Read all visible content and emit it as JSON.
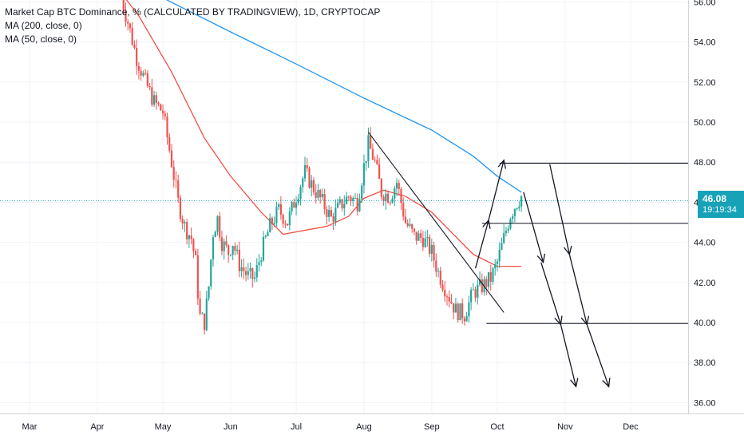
{
  "chart_data": {
    "type": "candlestick",
    "title": "Market Cap BTC Dominance, % (CALCULATED BY TRADINGVIEW), 1D, CRYPTOCAP",
    "indicators": [
      {
        "name": "MA (200, close, 0)",
        "color": "#2196f3"
      },
      {
        "name": "MA (50, close, 0)",
        "color": "#f44336"
      }
    ],
    "x_ticks": [
      "Mar",
      "Apr",
      "May",
      "Jun",
      "Jul",
      "Aug",
      "Sep",
      "Oct",
      "Nov",
      "Dec"
    ],
    "y_ticks": [
      "36.00",
      "38.00",
      "40.00",
      "42.00",
      "44.00",
      "46.00",
      "48.00",
      "50.00",
      "52.00",
      "54.00",
      "56.00"
    ],
    "ylim": [
      35.5,
      56.2
    ],
    "last_price": "46.08",
    "countdown": "19:19:34",
    "price_path": [
      [
        "2021-04-12",
        56.2
      ],
      [
        "2021-04-15",
        55.0
      ],
      [
        "2021-04-19",
        53.2
      ],
      [
        "2021-04-23",
        52.0
      ],
      [
        "2021-04-27",
        51.0
      ],
      [
        "2021-05-01",
        50.5
      ],
      [
        "2021-05-05",
        48.0
      ],
      [
        "2021-05-08",
        46.0
      ],
      [
        "2021-05-11",
        44.8
      ],
      [
        "2021-05-14",
        44.2
      ],
      [
        "2021-05-16",
        43.0
      ],
      [
        "2021-05-17",
        41.5
      ],
      [
        "2021-05-18",
        40.3
      ],
      [
        "2021-05-20",
        40.0
      ],
      [
        "2021-05-22",
        41.8
      ],
      [
        "2021-05-24",
        44.5
      ],
      [
        "2021-05-26",
        45.2
      ],
      [
        "2021-05-28",
        44.0
      ],
      [
        "2021-05-31",
        43.5
      ],
      [
        "2021-06-02",
        44.0
      ],
      [
        "2021-06-05",
        42.9
      ],
      [
        "2021-06-09",
        42.3
      ],
      [
        "2021-06-12",
        42.2
      ],
      [
        "2021-06-15",
        43.5
      ],
      [
        "2021-06-19",
        44.8
      ],
      [
        "2021-06-23",
        45.6
      ],
      [
        "2021-06-27",
        45.0
      ],
      [
        "2021-07-01",
        46.3
      ],
      [
        "2021-07-05",
        47.5
      ],
      [
        "2021-07-09",
        46.7
      ],
      [
        "2021-07-13",
        46.0
      ],
      [
        "2021-07-17",
        45.2
      ],
      [
        "2021-07-21",
        45.8
      ],
      [
        "2021-07-25",
        46.3
      ],
      [
        "2021-07-29",
        46.0
      ],
      [
        "2021-08-01",
        47.8
      ],
      [
        "2021-08-03",
        48.9
      ],
      [
        "2021-08-06",
        48.0
      ],
      [
        "2021-08-09",
        46.5
      ],
      [
        "2021-08-13",
        46.3
      ],
      [
        "2021-08-16",
        47.0
      ],
      [
        "2021-08-20",
        45.0
      ],
      [
        "2021-08-24",
        44.3
      ],
      [
        "2021-08-28",
        44.2
      ],
      [
        "2021-09-01",
        43.5
      ],
      [
        "2021-09-04",
        42.5
      ],
      [
        "2021-09-08",
        41.5
      ],
      [
        "2021-09-12",
        40.6
      ],
      [
        "2021-09-16",
        40.4
      ],
      [
        "2021-09-20",
        41.5
      ],
      [
        "2021-09-24",
        41.8
      ],
      [
        "2021-09-28",
        42.2
      ],
      [
        "2021-10-01",
        43.0
      ],
      [
        "2021-10-04",
        44.2
      ],
      [
        "2021-10-07",
        45.4
      ],
      [
        "2021-10-10",
        46.0
      ],
      [
        "2021-10-12",
        46.3
      ]
    ],
    "ma200": [
      [
        "2021-04-05",
        57.8
      ],
      [
        "2021-05-01",
        56.2
      ],
      [
        "2021-06-01",
        54.5
      ],
      [
        "2021-07-01",
        52.9
      ],
      [
        "2021-08-01",
        51.2
      ],
      [
        "2021-09-01",
        49.6
      ],
      [
        "2021-09-20",
        48.3
      ],
      [
        "2021-10-01",
        47.3
      ],
      [
        "2021-10-12",
        46.5
      ]
    ],
    "ma50": [
      [
        "2021-04-01",
        58.0
      ],
      [
        "2021-04-20",
        55.3
      ],
      [
        "2021-05-05",
        52.5
      ],
      [
        "2021-05-20",
        49.2
      ],
      [
        "2021-06-01",
        47.3
      ],
      [
        "2021-06-15",
        45.5
      ],
      [
        "2021-06-25",
        44.4
      ],
      [
        "2021-07-05",
        44.6
      ],
      [
        "2021-07-15",
        44.8
      ],
      [
        "2021-07-25",
        45.3
      ],
      [
        "2021-08-01",
        46.2
      ],
      [
        "2021-08-10",
        46.6
      ],
      [
        "2021-08-20",
        46.3
      ],
      [
        "2021-09-01",
        45.5
      ],
      [
        "2021-09-10",
        44.5
      ],
      [
        "2021-09-20",
        43.4
      ],
      [
        "2021-10-01",
        42.8
      ],
      [
        "2021-10-12",
        42.8
      ]
    ],
    "horizontal_levels": [
      {
        "y": 47.95,
        "from": "2021-10-02",
        "to": "2021-12-31"
      },
      {
        "y": 44.95,
        "from": "2021-09-24",
        "to": "2021-12-31"
      },
      {
        "y": 39.95,
        "from": "2021-09-26",
        "to": "2021-12-31"
      }
    ],
    "last_price_line": 46.08,
    "trendline": {
      "from": [
        "2021-08-03",
        49.5
      ],
      "to": [
        "2021-10-04",
        40.5
      ]
    },
    "arrows": [
      {
        "from": [
          "2021-09-21",
          42.7
        ],
        "to": [
          "2021-09-27",
          45.1
        ]
      },
      {
        "from": [
          "2021-09-27",
          45.1
        ],
        "to": [
          "2021-10-04",
          48.1
        ]
      },
      {
        "from": [
          "2021-10-13",
          46.5
        ],
        "to": [
          "2021-10-22",
          43.0
        ]
      },
      {
        "from": [
          "2021-10-21",
          43.0
        ],
        "to": [
          "2021-10-30",
          39.9
        ]
      },
      {
        "from": [
          "2021-10-30",
          39.9
        ],
        "to": [
          "2021-11-06",
          36.8
        ]
      },
      {
        "from": [
          "2021-10-25",
          47.9
        ],
        "to": [
          "2021-11-03",
          43.4
        ]
      },
      {
        "from": [
          "2021-11-03",
          43.4
        ],
        "to": [
          "2021-11-11",
          39.9
        ]
      },
      {
        "from": [
          "2021-11-11",
          39.9
        ],
        "to": [
          "2021-11-21",
          36.8
        ]
      }
    ],
    "colors": {
      "up": "#26a69a",
      "down": "#ef5350",
      "ma200": "#2196f3",
      "ma50": "#f44336",
      "badge": "#17a2b8"
    }
  }
}
